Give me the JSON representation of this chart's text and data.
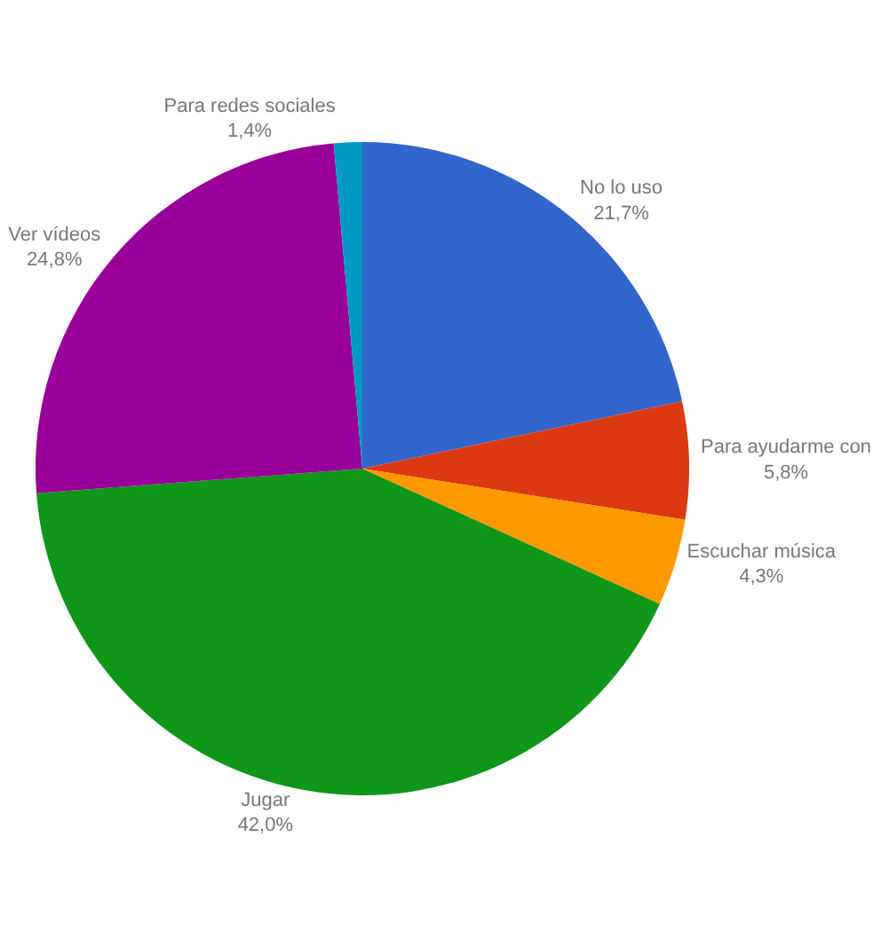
{
  "chart_data": {
    "type": "pie",
    "categories": [
      "No lo uso",
      "Para ayudarme con",
      "Escuchar música",
      "Jugar",
      "Ver vídeos",
      "Para redes sociales"
    ],
    "values": [
      21.7,
      5.8,
      4.3,
      42.0,
      24.8,
      1.4
    ],
    "value_labels": [
      "21,7%",
      "5,8%",
      "4,3%",
      "42,0%",
      "24,8%",
      "1,4%"
    ],
    "colors": [
      "#3366cc",
      "#dc3912",
      "#ff9900",
      "#109618",
      "#990099",
      "#0099c6"
    ],
    "legend": false
  }
}
